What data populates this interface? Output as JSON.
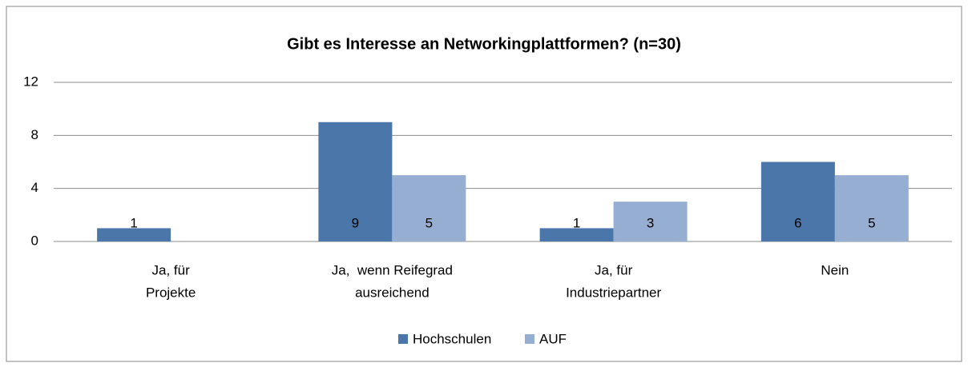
{
  "chart_data": {
    "type": "bar",
    "title": "Gibt es Interesse an Networkingplattformen? (n=30)",
    "categories": [
      [
        "Ja, für",
        "Projekte"
      ],
      [
        "Ja,  wenn Reifegrad",
        "ausreichend"
      ],
      [
        "Ja, für",
        "Industriepartner"
      ],
      [
        "Nein"
      ]
    ],
    "series": [
      {
        "name": "Hochschulen",
        "color": "#4a76aa",
        "values": [
          1,
          9,
          1,
          6
        ]
      },
      {
        "name": "AUF",
        "color": "#97aed3",
        "values": [
          null,
          5,
          3,
          5
        ]
      }
    ],
    "ylim": [
      0,
      12
    ],
    "yticks": [
      0,
      4,
      8,
      12
    ],
    "grid": true,
    "legend": "bottom"
  }
}
